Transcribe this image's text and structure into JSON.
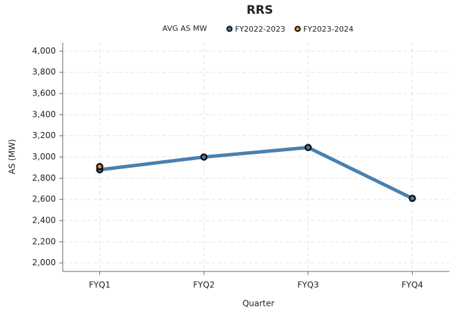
{
  "chart_data": {
    "type": "line",
    "title": "RRS",
    "legend_title": "AVG AS MW",
    "x_label": "Quarter",
    "y_label": "AS (MW)",
    "categories": [
      "FYQ1",
      "FYQ2",
      "FYQ3",
      "FYQ4"
    ],
    "series": [
      {
        "name": "FY2022-2023",
        "color": "#4a80b0",
        "values": [
          2880,
          3000,
          3090,
          2610
        ]
      },
      {
        "name": "FY2023-2024",
        "color": "#e8962e",
        "values": [
          2910,
          null,
          null,
          null
        ]
      }
    ],
    "ylim": [
      1920,
      4080
    ],
    "yticks": [
      {
        "value": 2000,
        "label": "2,000"
      },
      {
        "value": 2200,
        "label": "2,200"
      },
      {
        "value": 2400,
        "label": "2,400"
      },
      {
        "value": 2600,
        "label": "2,600"
      },
      {
        "value": 2800,
        "label": "2,800"
      },
      {
        "value": 3000,
        "label": "3,000"
      },
      {
        "value": 3200,
        "label": "3,200"
      },
      {
        "value": 3400,
        "label": "3,400"
      },
      {
        "value": 3600,
        "label": "3,600"
      },
      {
        "value": 3800,
        "label": "3,800"
      },
      {
        "value": 4000,
        "label": "4,000"
      }
    ],
    "grid": true
  }
}
